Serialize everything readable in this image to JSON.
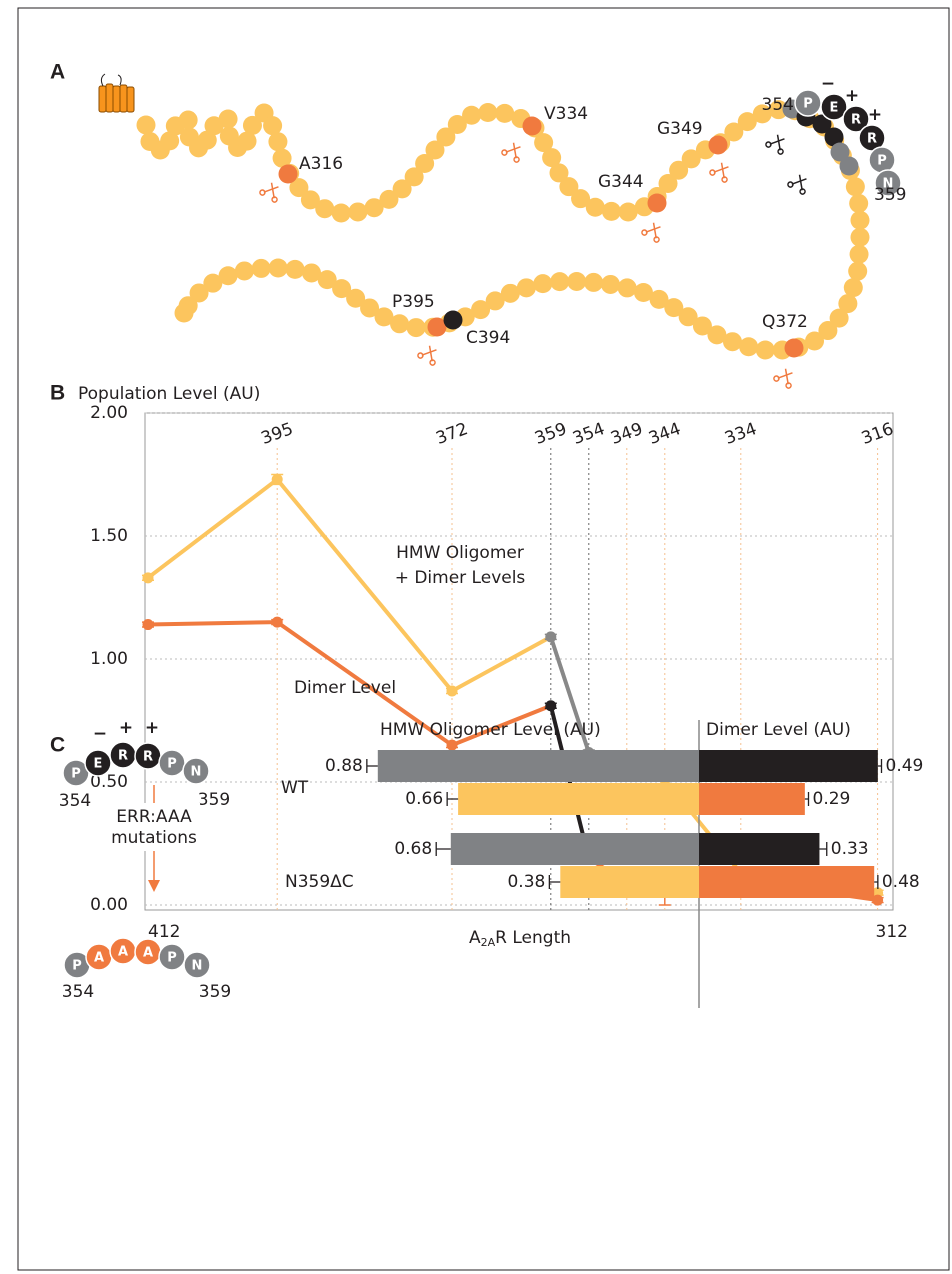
{
  "panel_letters": [
    "A",
    "B",
    "C"
  ],
  "panel_a": {
    "peptide": {
      "residues": [
        "P",
        "E",
        "R",
        "R",
        "P",
        "N"
      ],
      "charges": [
        "−",
        "+",
        "+"
      ],
      "start": "354",
      "end": "359"
    },
    "sites": [
      "A316",
      "V334",
      "G344",
      "G349",
      "Q372",
      "P395",
      "C394"
    ]
  },
  "chart_data": [
    {
      "type": "line",
      "y_label": "Population Level (AU)",
      "x_label": {
        "main": "A",
        "sub": "2A",
        "rest": "R Length"
      },
      "x": [
        412,
        395,
        372,
        359,
        354,
        349,
        344,
        334,
        316
      ],
      "xlim": [
        412,
        312
      ],
      "xticks": [
        412,
        312
      ],
      "ylim": [
        0,
        2
      ],
      "yticks": [
        {
          "value": 0,
          "label": "0.00"
        },
        {
          "value": 0.5,
          "label": "0.50"
        },
        {
          "value": 1,
          "label": "1.00"
        },
        {
          "value": 1.5,
          "label": "1.50"
        },
        {
          "value": 2,
          "label": "2.00"
        }
      ],
      "grid": true,
      "ref_lines": [
        {
          "x": 395,
          "color": "#f07a3f"
        },
        {
          "x": 372,
          "color": "#f07a3f"
        },
        {
          "x": 359,
          "color": "#231f20"
        },
        {
          "x": 354,
          "color": "#231f20"
        },
        {
          "x": 349,
          "color": "#f07a3f"
        },
        {
          "x": 344,
          "color": "#f07a3f"
        },
        {
          "x": 334,
          "color": "#f07a3f"
        },
        {
          "x": 316,
          "color": "#f07a3f"
        }
      ],
      "series": [
        {
          "name": [
            "HMW Oligomer",
            "+ Dimer Levels"
          ],
          "color": "#fcc55e",
          "values": [
            1.33,
            1.73,
            0.87,
            1.09,
            0.62,
            0.58,
            0.51,
            0.13,
            0.05
          ],
          "errors": [
            0.01,
            0.02,
            0.01,
            0.01,
            0.01,
            0.01,
            0.11,
            0.01,
            0.01
          ],
          "marker_colors": [
            "#fcc55e",
            "#fcc55e",
            "#fcc55e",
            "#888888",
            "#888888",
            "#fcc55e",
            "#fcc55e",
            "#fcc55e",
            "#fcc55e"
          ],
          "segment_colors": [
            "#fcc55e",
            "#fcc55e",
            "#fcc55e",
            "#888888",
            "#fcc55e",
            "#fcc55e",
            "#fcc55e",
            "#fcc55e"
          ]
        },
        {
          "name": [
            "Dimer Level"
          ],
          "color": "#f07a3f",
          "values": [
            1.14,
            1.15,
            0.65,
            0.81,
            0.19,
            0.09,
            0.06,
            0.1,
            0.02
          ],
          "errors": [
            0.01,
            0.01,
            0.01,
            0.01,
            0.01,
            0.01,
            0.06,
            0.01,
            0.01
          ],
          "marker_colors": [
            "#f07a3f",
            "#f07a3f",
            "#f07a3f",
            "#231f20",
            "#231f20",
            "#f07a3f",
            "#f07a3f",
            "#f07a3f",
            "#f07a3f"
          ],
          "segment_colors": [
            "#f07a3f",
            "#f07a3f",
            "#f07a3f",
            "#231f20",
            "#f07a3f",
            "#f07a3f",
            "#f07a3f",
            "#f07a3f"
          ]
        }
      ]
    },
    {
      "type": "butterfly_bar",
      "left_label": "HMW Oligomer Level (AU)",
      "right_label": "Dimer Level (AU)",
      "categories": [
        "WT",
        "N359ΔC"
      ],
      "series": [
        {
          "side": "left",
          "color": "#808285",
          "label_color": "#231f20",
          "values": [
            0.88,
            0.68
          ],
          "errors": [
            0.03,
            0.04
          ]
        },
        {
          "side": "right",
          "color": "#231f20",
          "label_color": "#231f20",
          "values": [
            0.49,
            0.33
          ],
          "errors": [
            0.01,
            0.02
          ]
        },
        {
          "side": "left",
          "color": "#fcc55e",
          "label_color": "#f07a3f",
          "values": [
            0.66,
            0.38
          ],
          "errors": [
            0.03,
            0.03
          ]
        },
        {
          "side": "right",
          "color": "#f07a3f",
          "label_color": "#f07a3f",
          "values": [
            0.29,
            0.48
          ],
          "errors": [
            0.01,
            0.01
          ]
        }
      ]
    }
  ],
  "panel_c": {
    "wt_peptide": {
      "residues": [
        "P",
        "E",
        "R",
        "R",
        "P",
        "N"
      ],
      "charges": [
        "−",
        "+",
        "+"
      ],
      "start": "354",
      "end": "359"
    },
    "mutation_label": [
      "ERR:AAA",
      "mutations"
    ],
    "mutant_peptide": {
      "residues": [
        "P",
        "A",
        "A",
        "A",
        "P",
        "N"
      ],
      "start": "354",
      "end": "359"
    }
  }
}
